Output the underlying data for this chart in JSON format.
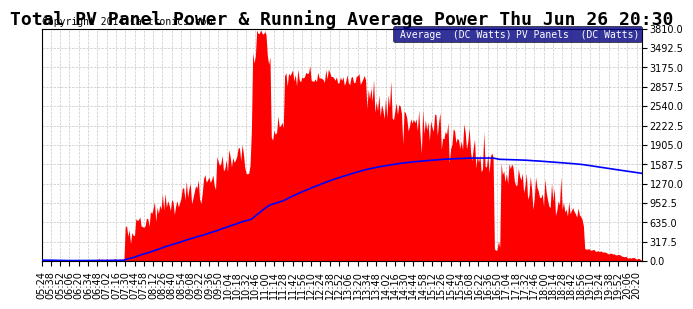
{
  "title": "Total PV Panel Power & Running Average Power Thu Jun 26 20:30",
  "copyright": "Copyright 2014 Cartronics.com",
  "legend_avg": "Average  (DC Watts)",
  "legend_pv": "PV Panels  (DC Watts)",
  "y_max": 3810.0,
  "y_min": 0.0,
  "y_ticks": [
    0.0,
    317.5,
    635.0,
    952.5,
    1270.0,
    1587.5,
    1905.0,
    2222.5,
    2540.0,
    2857.5,
    3175.0,
    3492.5,
    3810.0
  ],
  "bg_color": "#ffffff",
  "plot_bg_color": "#ffffff",
  "grid_color": "#c8c8c8",
  "pv_color": "#ff0000",
  "avg_color": "#0000ff",
  "title_fontsize": 13,
  "copyright_fontsize": 7,
  "tick_fontsize": 7
}
